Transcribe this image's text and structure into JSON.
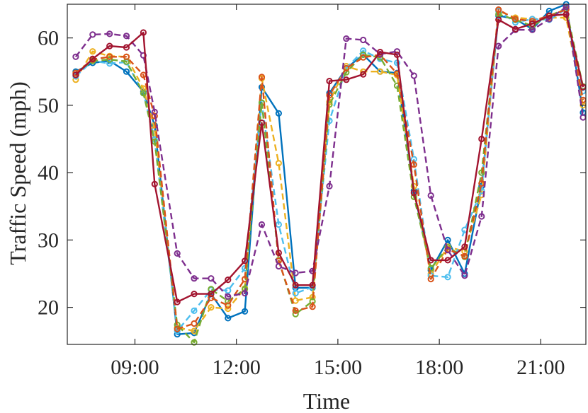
{
  "chart_data": {
    "type": "line",
    "xlabel": "Time",
    "ylabel": "Traffic Speed (mph)",
    "xlim": [
      "07:00",
      "22:20"
    ],
    "ylim": [
      14.5,
      65
    ],
    "xticks": [
      "09:00",
      "12:00",
      "15:00",
      "18:00",
      "21:00"
    ],
    "yticks": [
      20,
      30,
      40,
      50,
      60
    ],
    "grid": false,
    "legend": "none",
    "x": [
      "07:15",
      "07:45",
      "08:15",
      "08:45",
      "09:15",
      "09:35",
      "10:15",
      "10:45",
      "11:15",
      "11:45",
      "12:15",
      "12:45",
      "13:15",
      "13:45",
      "14:15",
      "14:45",
      "15:15",
      "15:45",
      "16:15",
      "16:45",
      "17:15",
      "17:45",
      "18:15",
      "18:45",
      "19:15",
      "19:45",
      "20:15",
      "20:45",
      "21:15",
      "21:45",
      "22:15"
    ],
    "series": [
      {
        "color": "#0072BD",
        "style": "solid",
        "values": [
          55,
          56.3,
          56.6,
          55,
          52,
          47,
          16,
          16.2,
          22,
          18.4,
          19.4,
          52.7,
          48.8,
          22.9,
          22.9,
          51.8,
          55.5,
          57.5,
          55,
          54.8,
          37.3,
          25.5,
          30,
          25,
          38,
          63.3,
          62.8,
          61.3,
          64,
          65,
          48.9
        ]
      },
      {
        "color": "#EDB120",
        "style": "dashed",
        "values": [
          53.8,
          58,
          57.3,
          57.2,
          52.5,
          46.5,
          17,
          16.5,
          20,
          19.8,
          22.8,
          54,
          41.4,
          21,
          21.5,
          50.5,
          55.8,
          55,
          55,
          54.5,
          38,
          25,
          29,
          28.3,
          36.7,
          64,
          63,
          62.8,
          63,
          63,
          50
        ]
      },
      {
        "color": "#4DBEEE",
        "style": "dashed",
        "values": [
          54.3,
          56.6,
          56.2,
          56.4,
          51.8,
          44.9,
          16.5,
          19.5,
          22.6,
          22.5,
          25.8,
          50.3,
          32.3,
          22.1,
          23,
          47.7,
          55.5,
          58.1,
          56.9,
          56.3,
          42,
          24.7,
          24.5,
          31.5,
          37.3,
          64,
          62.3,
          62.8,
          62.7,
          64.3,
          52.1
        ]
      },
      {
        "color": "#77AC30",
        "style": "dashed",
        "values": [
          54.8,
          56.6,
          56.8,
          56.5,
          51.8,
          44.6,
          17.4,
          14.8,
          22.7,
          20.9,
          22.7,
          50.4,
          27,
          19,
          20.9,
          50.1,
          54.9,
          57.5,
          57.1,
          52.9,
          36.4,
          25.8,
          28.9,
          27.5,
          40,
          63.5,
          62.7,
          61.8,
          63.3,
          64.3,
          52.8
        ]
      },
      {
        "color": "#D95319",
        "style": "dashed",
        "values": [
          54.8,
          56.8,
          57.2,
          57.2,
          54.5,
          48.4,
          16.8,
          17.6,
          21.4,
          20.3,
          24.2,
          54.2,
          26.9,
          19.5,
          20.1,
          51.5,
          55.5,
          57.1,
          57.5,
          54.7,
          41.2,
          24.2,
          28.6,
          27.6,
          38.4,
          64.2,
          62.8,
          62.5,
          63.3,
          64.2,
          50.8
        ]
      },
      {
        "color": "#7E2F8E",
        "style": "dashed",
        "values": [
          57.2,
          60.5,
          60.6,
          60.3,
          57.4,
          49,
          28,
          24.3,
          24.3,
          21.6,
          22.1,
          32.3,
          26.1,
          25.1,
          25.4,
          38,
          59.9,
          59.7,
          57.6,
          58,
          54.4,
          36.6,
          28.5,
          24.7,
          33.5,
          58.8,
          61.2,
          61.2,
          62.8,
          64.6,
          48.2
        ]
      },
      {
        "color": "#A2142F",
        "style": "solid",
        "values": [
          54.5,
          56.9,
          58.8,
          58.6,
          60.8,
          38.3,
          20.8,
          22,
          22,
          24.1,
          26.9,
          47.4,
          28.1,
          23.3,
          23.3,
          53.6,
          53.8,
          54.6,
          57.9,
          57.5,
          37,
          27,
          27,
          29,
          45,
          62.7,
          61.3,
          62.1,
          63.3,
          63.5,
          52.7
        ]
      }
    ]
  }
}
